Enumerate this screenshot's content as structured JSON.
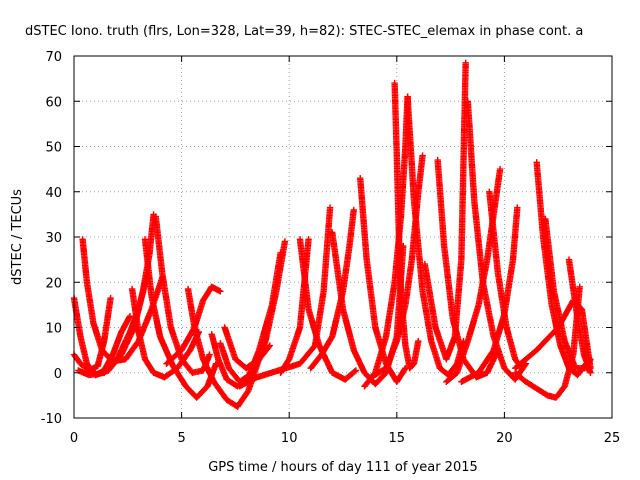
{
  "chart_data": {
    "type": "scatter",
    "title": "dSTEC Iono. truth (flrs, Lon=328, Lat=39, h=82): STEC-STEC_elemax in phase cont. a",
    "xlabel": "GPS time / hours of day 111 of year 2015",
    "ylabel": "dSTEC  / TECUs",
    "xlim": [
      0,
      25
    ],
    "ylim": [
      -10,
      70
    ],
    "xticks": [
      "0",
      "5",
      "10",
      "15",
      "20",
      "25"
    ],
    "yticks": [
      "-10",
      "0",
      "10",
      "20",
      "30",
      "40",
      "50",
      "60",
      "70"
    ],
    "grid": true,
    "marker": "+",
    "color": "#ff0000",
    "series": [
      {
        "x": [
          0.0,
          0.3,
          0.6,
          1.0,
          1.4,
          1.8,
          2.2,
          2.6
        ],
        "y": [
          16.5,
          8,
          2,
          -0.5,
          0.5,
          4,
          9,
          12.5
        ]
      },
      {
        "x": [
          0.0,
          0.3,
          0.7,
          1.1,
          1.4,
          1.7
        ],
        "y": [
          4,
          2,
          0.5,
          1.5,
          7,
          16.5
        ]
      },
      {
        "x": [
          0.4,
          0.6,
          0.9,
          1.3,
          1.8,
          2.4,
          3.0,
          3.6,
          4.1
        ],
        "y": [
          29.5,
          20,
          11,
          5,
          2.5,
          3,
          7,
          14,
          21
        ]
      },
      {
        "x": [
          0.2,
          0.7,
          1.4,
          2.0,
          2.6,
          3.0,
          3.4
        ],
        "y": [
          0.5,
          -0.5,
          0,
          3,
          9,
          14,
          21.5
        ]
      },
      {
        "x": [
          1.0,
          1.6,
          2.2,
          2.8,
          3.2,
          3.5,
          3.7
        ],
        "y": [
          -0.5,
          0.5,
          4,
          10,
          18,
          26,
          35
        ]
      },
      {
        "x": [
          2.7,
          3.0,
          3.3,
          3.7,
          4.2,
          4.8,
          5.4,
          5.8
        ],
        "y": [
          18.5,
          9,
          3,
          0,
          -1,
          1,
          5,
          9
        ]
      },
      {
        "x": [
          3.3,
          3.6,
          4.0,
          4.6,
          5.2,
          5.7,
          6.2,
          6.6
        ],
        "y": [
          29.5,
          17,
          8,
          1.5,
          -3,
          -5.5,
          -3,
          2
        ]
      },
      {
        "x": [
          3.8,
          4.1,
          4.5,
          5.0,
          5.5,
          6.0,
          6.3
        ],
        "y": [
          34.5,
          22,
          10,
          3,
          0,
          0.5,
          4
        ]
      },
      {
        "x": [
          4.3,
          5.0,
          5.6,
          6.0,
          6.4,
          6.8
        ],
        "y": [
          2,
          5,
          10,
          16,
          19,
          18
        ]
      },
      {
        "x": [
          5.3,
          5.6,
          6.0,
          6.5,
          7.1,
          7.6,
          8.1,
          8.6,
          9.0
        ],
        "y": [
          18.5,
          10,
          3,
          -2,
          -6,
          -7.5,
          -4,
          3,
          10
        ]
      },
      {
        "x": [
          6.4,
          6.7,
          7.1,
          7.6,
          8.1,
          8.6,
          9.2,
          9.6
        ],
        "y": [
          8.5,
          3,
          -1.5,
          -3,
          -1,
          5,
          15,
          26.5
        ]
      },
      {
        "x": [
          6.8,
          7.2,
          7.7,
          8.3,
          8.9,
          9.4,
          9.8
        ],
        "y": [
          6.5,
          1,
          -2,
          0,
          7,
          18,
          29
        ]
      },
      {
        "x": [
          7.0,
          7.5,
          8.0,
          8.6,
          9.1
        ],
        "y": [
          10,
          3,
          1,
          3,
          6
        ]
      },
      {
        "x": [
          7.7,
          8.5,
          9.5,
          10.5,
          11.2,
          11.6,
          11.9
        ],
        "y": [
          -3,
          -1,
          0.5,
          2,
          6,
          18,
          36.5
        ]
      },
      {
        "x": [
          9.6,
          10.0,
          10.5,
          10.9
        ],
        "y": [
          0,
          3,
          10,
          29.5
        ]
      },
      {
        "x": [
          10.5,
          10.9,
          11.4,
          12.0,
          12.6,
          13.1
        ],
        "y": [
          29.5,
          14,
          6,
          0,
          -1.5,
          0.5
        ]
      },
      {
        "x": [
          11.0,
          11.5,
          12.0,
          12.5,
          12.8,
          13.0
        ],
        "y": [
          1,
          4,
          8,
          18,
          28,
          36
        ]
      },
      {
        "x": [
          12.0,
          12.5,
          13.0,
          13.5,
          14.0,
          14.5,
          15.0,
          15.3
        ],
        "y": [
          31,
          14,
          5,
          0,
          -2.5,
          0,
          8,
          28
        ]
      },
      {
        "x": [
          13.3,
          13.6,
          14.0,
          14.5,
          15.0,
          15.4
        ],
        "y": [
          43,
          25,
          10,
          2,
          -2,
          1
        ]
      },
      {
        "x": [
          13.5,
          14.0,
          14.5,
          14.9,
          15.2,
          15.4,
          15.5
        ],
        "y": [
          -3,
          0,
          8,
          20,
          35,
          50,
          61
        ]
      },
      {
        "x": [
          14.9,
          15.0,
          15.1,
          15.2,
          15.4,
          15.6,
          15.8,
          16.0
        ],
        "y": [
          64,
          48,
          30,
          17,
          6,
          1,
          2,
          7
        ]
      },
      {
        "x": [
          13.8,
          14.5,
          15.0,
          15.4,
          15.7,
          16.0,
          16.2
        ],
        "y": [
          -1,
          1,
          7,
          15,
          25,
          40,
          48
        ]
      },
      {
        "x": [
          15.5,
          15.8,
          16.2,
          16.6,
          17.0,
          17.4,
          17.8,
          18.1
        ],
        "y": [
          61,
          38,
          18,
          7,
          1,
          -0.5,
          2,
          7
        ]
      },
      {
        "x": [
          16.3,
          16.8,
          17.3,
          17.7,
          18.0,
          18.2
        ],
        "y": [
          24,
          10,
          3,
          8,
          25,
          68.5
        ]
      },
      {
        "x": [
          16.9,
          17.2,
          17.6,
          18.1,
          18.7,
          19.2,
          19.7
        ],
        "y": [
          47,
          28,
          12,
          3,
          -1,
          0,
          5
        ]
      },
      {
        "x": [
          17.3,
          17.8,
          18.3,
          18.8,
          19.2,
          19.5,
          19.8
        ],
        "y": [
          -2,
          0,
          7,
          15,
          25,
          35,
          45
        ]
      },
      {
        "x": [
          18.3,
          18.6,
          19.0,
          19.5,
          20.0,
          20.5,
          21.0
        ],
        "y": [
          60,
          38,
          20,
          8,
          1,
          -1.5,
          2
        ]
      },
      {
        "x": [
          19.3,
          19.7,
          20.1,
          20.5,
          20.8
        ],
        "y": [
          40,
          22,
          10,
          3,
          1
        ]
      },
      {
        "x": [
          18.0,
          18.8,
          19.5,
          20.0,
          20.4,
          20.6
        ],
        "y": [
          -2,
          0,
          5,
          13,
          25,
          36.5
        ]
      },
      {
        "x": [
          21.5,
          21.8,
          22.2,
          22.6,
          23.0,
          23.4,
          23.8
        ],
        "y": [
          46.5,
          30,
          15,
          6,
          1,
          -0.5,
          2
        ]
      },
      {
        "x": [
          21.9,
          22.3,
          22.8,
          23.3,
          23.8,
          24.0
        ],
        "y": [
          34,
          18,
          7,
          1,
          1,
          3
        ]
      },
      {
        "x": [
          20.5,
          21.0,
          21.5,
          22.0,
          22.4,
          22.8,
          23.2,
          23.5
        ],
        "y": [
          0,
          -2,
          -3.5,
          -5,
          -5.5,
          -3,
          4,
          19
        ]
      },
      {
        "x": [
          23.0,
          23.4,
          23.7,
          24.0
        ],
        "y": [
          25,
          12,
          4,
          0
        ]
      },
      {
        "x": [
          20.5,
          21.5,
          22.5,
          23.2,
          23.6,
          24.0
        ],
        "y": [
          1,
          5,
          10,
          16,
          14,
          1
        ]
      }
    ]
  }
}
